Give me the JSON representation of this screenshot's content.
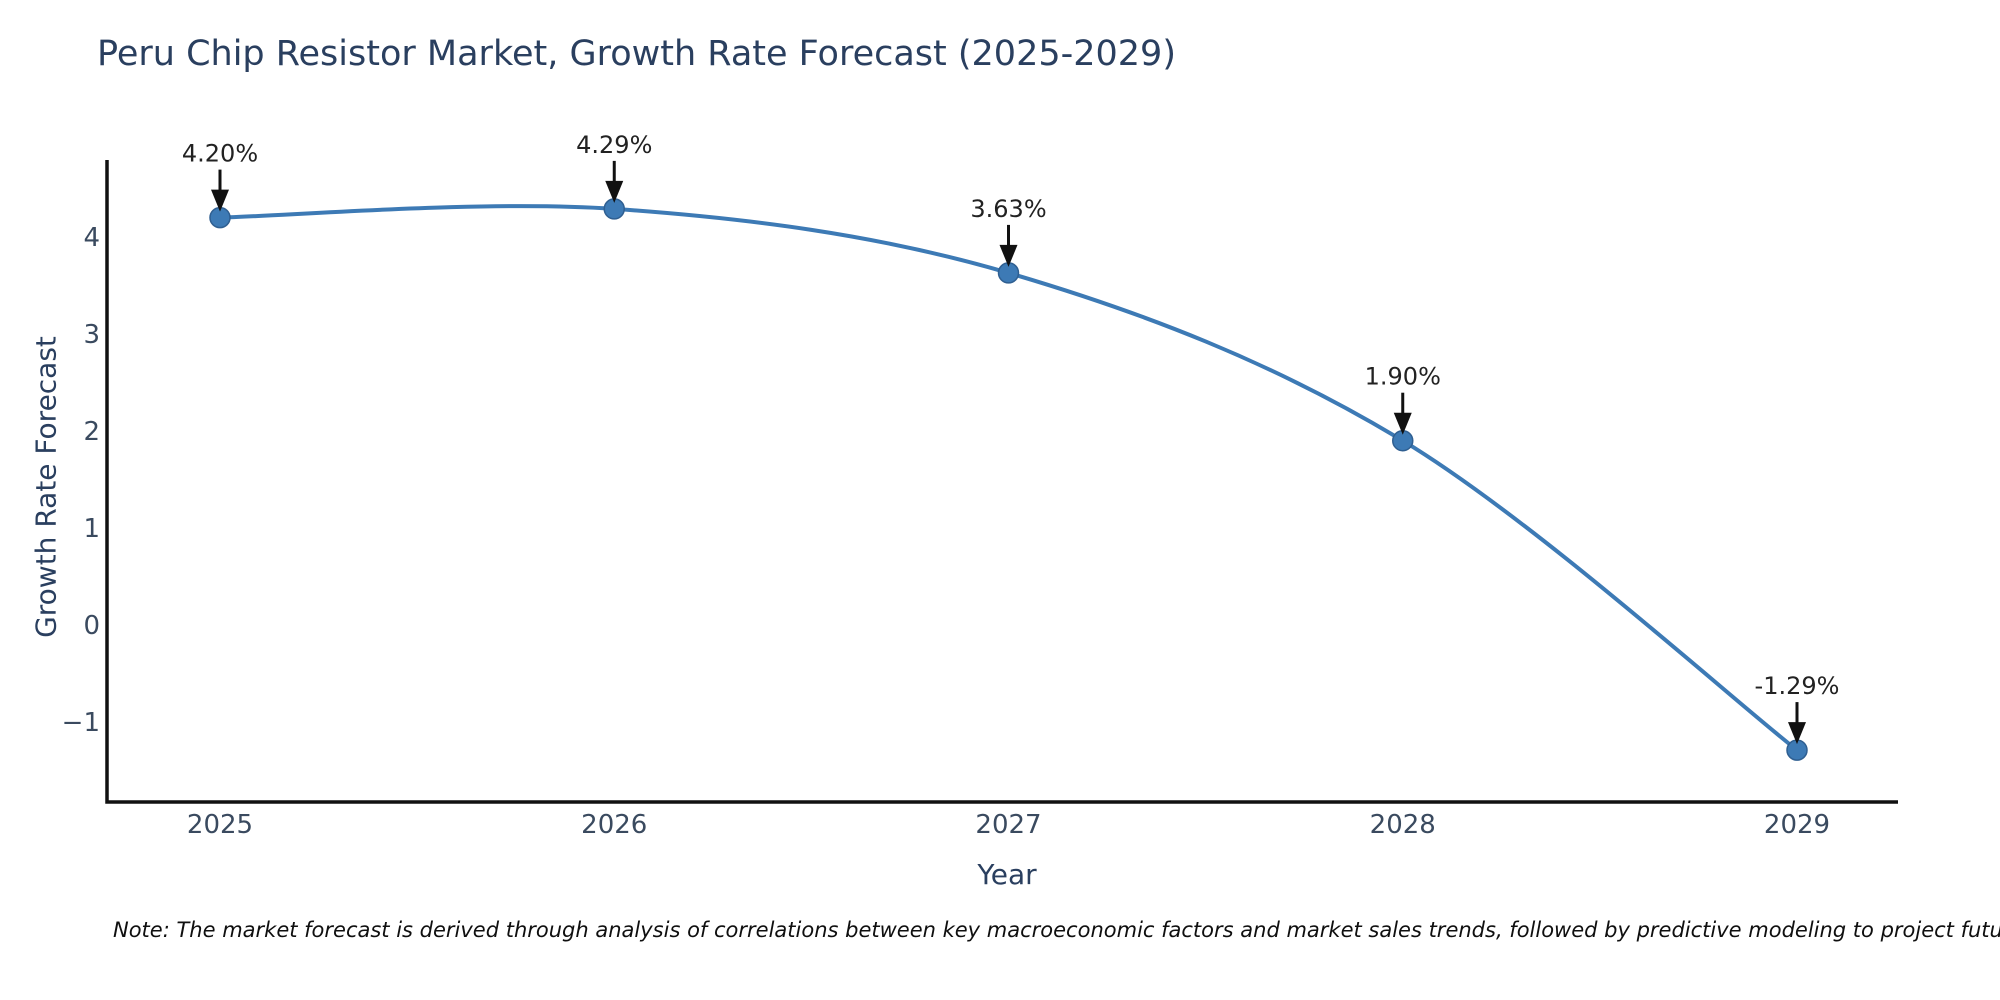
{
  "title": "Peru Chip Resistor Market, Growth Rate Forecast (2025-2029)",
  "footnote": "Note: The market forecast is derived through analysis of correlations between key macroeconomic factors and market sales trends, followed by predictive modeling to project future sales",
  "colors": {
    "line": "#3d7ab5",
    "marker_fill": "#3d7ab5",
    "marker_edge": "#2f5f91",
    "axis_line": "#111111",
    "title_text": "#2a3f5f",
    "axis_title_text": "#2a3f5f",
    "tick_text": "#3a4a5f",
    "annotation_text": "#222222",
    "arrow": "#111111",
    "background": "#ffffff"
  },
  "chart_data": {
    "type": "line",
    "title": "Peru Chip Resistor Market, Growth Rate Forecast (2025-2029)",
    "xlabel": "Year",
    "ylabel": "Growth Rate Forecast",
    "x": [
      2025,
      2026,
      2027,
      2028,
      2029
    ],
    "x_tick_labels": [
      "2025",
      "2026",
      "2027",
      "2028",
      "2029"
    ],
    "series": [
      {
        "name": "Growth Rate Forecast",
        "values": [
          4.2,
          4.29,
          3.63,
          1.9,
          -1.29
        ],
        "point_labels": [
          "4.20%",
          "4.29%",
          "3.63%",
          "1.90%",
          "-1.29%"
        ]
      }
    ],
    "y_ticks": [
      {
        "label": "4",
        "value": 4
      },
      {
        "label": "3",
        "value": 3
      },
      {
        "label": "2",
        "value": 2
      },
      {
        "label": "1",
        "value": 1
      },
      {
        "label": "0",
        "value": 0
      },
      {
        "label": "−1",
        "value": -1
      }
    ],
    "ylim": [
      -1.8,
      4.8
    ],
    "line_shape": "spline",
    "grid": false,
    "legend_visible": false,
    "annotations_have_arrows": true
  }
}
